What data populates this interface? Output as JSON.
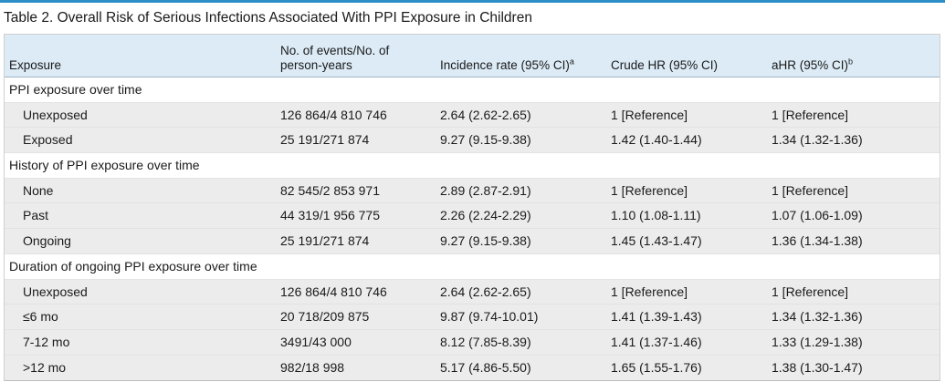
{
  "table": {
    "title": "Table 2. Overall Risk of Serious Infections Associated With PPI Exposure in Children",
    "headers": {
      "exposure": "Exposure",
      "events_line1": "No. of events/No. of",
      "events_line2": "person-years",
      "incidence": "Incidence rate (95% CI)",
      "incidence_sup": "a",
      "crude": "Crude HR (95% CI)",
      "ahr": "aHR (95% CI)",
      "ahr_sup": "b"
    },
    "groups": [
      {
        "label": "PPI exposure over time",
        "rows": [
          {
            "exposure": "Unexposed",
            "events": "126 864/4 810 746",
            "incidence": "2.64 (2.62-2.65)",
            "crude": "1 [Reference]",
            "ahr": "1 [Reference]"
          },
          {
            "exposure": "Exposed",
            "events": "25 191/271 874",
            "incidence": "9.27 (9.15-9.38)",
            "crude": "1.42 (1.40-1.44)",
            "ahr": "1.34 (1.32-1.36)"
          }
        ]
      },
      {
        "label": "History of PPI exposure over time",
        "rows": [
          {
            "exposure": "None",
            "events": "82 545/2 853 971",
            "incidence": "2.89 (2.87-2.91)",
            "crude": "1 [Reference]",
            "ahr": "1 [Reference]"
          },
          {
            "exposure": "Past",
            "events": "44 319/1 956 775",
            "incidence": "2.26 (2.24-2.29)",
            "crude": "1.10 (1.08-1.11)",
            "ahr": "1.07 (1.06-1.09)"
          },
          {
            "exposure": "Ongoing",
            "events": "25 191/271 874",
            "incidence": "9.27 (9.15-9.38)",
            "crude": "1.45 (1.43-1.47)",
            "ahr": "1.36 (1.34-1.38)"
          }
        ]
      },
      {
        "label": "Duration of ongoing PPI exposure over time",
        "rows": [
          {
            "exposure": "Unexposed",
            "events": "126 864/4 810 746",
            "incidence": "2.64 (2.62-2.65)",
            "crude": "1 [Reference]",
            "ahr": "1 [Reference]"
          },
          {
            "exposure": "≤6 mo",
            "events": "20 718/209 875",
            "incidence": "9.87 (9.74-10.01)",
            "crude": "1.41 (1.39-1.43)",
            "ahr": "1.34 (1.32-1.36)"
          },
          {
            "exposure": "7-12 mo",
            "events": "3491/43 000",
            "incidence": "8.12 (7.85-8.39)",
            "crude": "1.41 (1.37-1.46)",
            "ahr": "1.33 (1.29-1.38)"
          },
          {
            "exposure": ">12 mo",
            "events": "982/18 998",
            "incidence": "5.17 (4.86-5.50)",
            "crude": "1.65 (1.55-1.76)",
            "ahr": "1.38 (1.30-1.47)"
          }
        ]
      }
    ],
    "colors": {
      "accent_rule": "#2b8ec8",
      "header_bg": "#dcebf6",
      "alt_row_bg": "#ececec"
    }
  }
}
